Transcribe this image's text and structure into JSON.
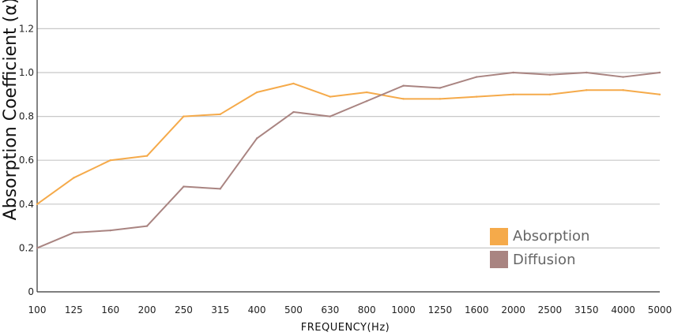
{
  "chart_data": {
    "type": "line",
    "categories": [
      "100",
      "125",
      "160",
      "200",
      "250",
      "315",
      "400",
      "500",
      "630",
      "800",
      "1000",
      "1250",
      "1600",
      "2000",
      "2500",
      "3150",
      "4000",
      "5000"
    ],
    "series": [
      {
        "name": "Absorption",
        "color": "#F5AA4A",
        "values": [
          0.4,
          0.52,
          0.6,
          0.62,
          0.8,
          0.81,
          0.91,
          0.95,
          0.89,
          0.91,
          0.88,
          0.88,
          0.89,
          0.9,
          0.9,
          0.92,
          0.92,
          0.9
        ]
      },
      {
        "name": "Diffusion",
        "color": "#A98481",
        "values": [
          0.2,
          0.27,
          0.28,
          0.3,
          0.48,
          0.47,
          0.7,
          0.82,
          0.8,
          0.87,
          0.94,
          0.93,
          0.98,
          1.0,
          0.99,
          1.0,
          0.98,
          1.0
        ]
      }
    ],
    "yticks": [
      "0",
      "0.2",
      "0.4",
      "0.6",
      "0.8",
      "1.0",
      "1.2"
    ],
    "ylim": [
      0,
      1.3
    ],
    "xlabel": "FREQUENCY(Hz)",
    "ylabel": "Absorption Coefficient (α)",
    "grid": "horizontal",
    "legend_position": "bottom-right"
  }
}
